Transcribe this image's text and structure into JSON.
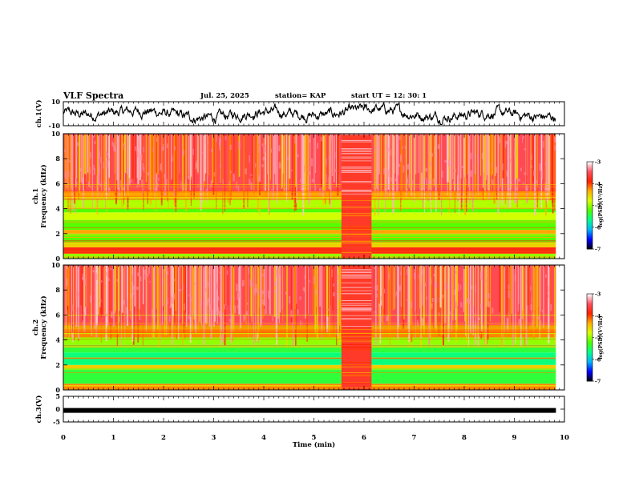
{
  "header": {
    "title": "VLF Spectra",
    "date": "Jul. 25, 2025",
    "station": "station= KAP",
    "start_ut": "start UT =   12: 30: 1"
  },
  "colors": {
    "ch1_base": "#ff2a18",
    "ch2_base": "#ff2a18",
    "trace": "#000000",
    "scale": [
      "#000000",
      "#0000ff",
      "#00b4ff",
      "#00ff90",
      "#4cff00",
      "#d8ff00",
      "#ffb000",
      "#ff2000",
      "#ff5060",
      "#ffffff"
    ]
  },
  "chart_data": [
    {
      "type": "line",
      "name": "ch1-waveform",
      "ylabel": "ch.1(V)",
      "ylim": [
        -10,
        10
      ],
      "y_ticks": [
        "10",
        "-10"
      ],
      "xlim": [
        0,
        10
      ],
      "trace_end_min": 9.83
    },
    {
      "type": "heatmap",
      "name": "ch1-spectrogram",
      "ylabel": "ch.1\nFrequency (kHz)",
      "ylim": [
        0,
        10
      ],
      "y_ticks": [
        "0",
        "2",
        "4",
        "6",
        "8",
        "10"
      ],
      "xlim": [
        0,
        10
      ],
      "data_end_min": 9.83,
      "gap_window_min": [
        5.55,
        6.15
      ],
      "colorbar": {
        "label": "log(PSD)(V²/Hz)",
        "range": [
          -7,
          -3
        ],
        "ticks": [
          "-3",
          "-4",
          "-5",
          "-6",
          "-7"
        ]
      },
      "bands_khz": [
        {
          "from": 0.0,
          "to": 0.4,
          "level": -5.0
        },
        {
          "from": 0.4,
          "to": 0.9,
          "level": -3.8
        },
        {
          "from": 0.9,
          "to": 1.3,
          "level": -4.5
        },
        {
          "from": 1.3,
          "to": 2.0,
          "level": -5.2
        },
        {
          "from": 2.0,
          "to": 2.3,
          "level": -4.3
        },
        {
          "from": 2.3,
          "to": 3.1,
          "level": -5.2
        },
        {
          "from": 3.1,
          "to": 3.7,
          "level": -4.8
        },
        {
          "from": 3.7,
          "to": 4.0,
          "level": -5.2
        },
        {
          "from": 4.0,
          "to": 4.8,
          "level": -4.9
        },
        {
          "from": 4.8,
          "to": 5.4,
          "level": -4.3
        },
        {
          "from": 5.4,
          "to": 10.0,
          "level": -3.5
        }
      ]
    },
    {
      "type": "heatmap",
      "name": "ch2-spectrogram",
      "ylabel": "ch.2\nFrequency (kHz)",
      "ylim": [
        0,
        10
      ],
      "y_ticks": [
        "0",
        "2",
        "4",
        "6",
        "8",
        "10"
      ],
      "xlim": [
        0,
        10
      ],
      "data_end_min": 9.83,
      "gap_window_min": [
        5.55,
        6.15
      ],
      "colorbar": {
        "label": "log(PSD)(V²/Hz)",
        "range": [
          -7,
          -3
        ],
        "ticks": [
          "-3",
          "-4",
          "-5",
          "-6",
          "-7"
        ]
      },
      "bands_khz": [
        {
          "from": 0.0,
          "to": 0.5,
          "level": -4.2
        },
        {
          "from": 0.5,
          "to": 1.7,
          "level": -5.4
        },
        {
          "from": 1.7,
          "to": 2.0,
          "level": -4.5
        },
        {
          "from": 2.0,
          "to": 3.0,
          "level": -5.6
        },
        {
          "from": 3.0,
          "to": 3.6,
          "level": -5.4
        },
        {
          "from": 3.6,
          "to": 4.2,
          "level": -5.0
        },
        {
          "from": 4.2,
          "to": 5.2,
          "level": -4.2
        },
        {
          "from": 5.2,
          "to": 10.0,
          "level": -3.5
        }
      ]
    },
    {
      "type": "line",
      "name": "ch3-waveform",
      "ylabel": "ch.3(V)",
      "ylim": [
        -5,
        5
      ],
      "y_ticks": [
        "5",
        "0",
        "-5"
      ],
      "xlim": [
        0,
        10
      ],
      "x_ticks": [
        "0",
        "1",
        "2",
        "3",
        "4",
        "5",
        "6",
        "7",
        "8",
        "9",
        "10"
      ],
      "xlabel": "Time (min)",
      "trace_end_min": 9.83,
      "level_v": -0.5
    }
  ]
}
